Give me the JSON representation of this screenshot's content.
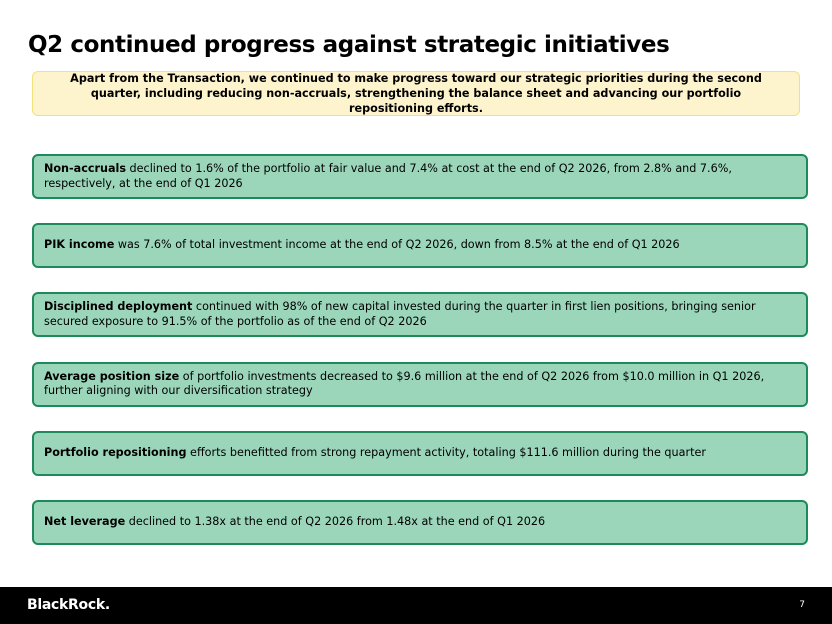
{
  "title": "Q2 continued progress against strategic initiatives",
  "intro": "Apart from the Transaction, we continued to make progress toward our strategic priorities during the second quarter, including reducing non-accruals, strengthening the balance sheet and advancing our portfolio repositioning efforts.",
  "initiatives": [
    {
      "heading": "Non-accruals",
      "text": " declined to 1.6% of the portfolio at fair value and 7.4% at cost at the end of Q2 2026, from 2.8% and 7.6%, respectively, at the end of Q1 2026"
    },
    {
      "heading": "PIK income",
      "text": " was 7.6% of total investment income at the end of Q2 2026, down from 8.5% at the end of Q1 2026"
    },
    {
      "heading": "Disciplined deployment",
      "text": " continued with 98% of new capital invested during the quarter in first lien positions, bringing senior secured exposure to 91.5% of the portfolio as of the end of Q2 2026"
    },
    {
      "heading": "Average position size",
      "text": " of portfolio investments decreased to $9.6 million at the end of Q2 2026 from $10.0 million in Q1 2026, further aligning with our diversification strategy"
    },
    {
      "heading": "Portfolio repositioning",
      "text": " efforts benefitted from strong repayment activity, totaling $111.6 million during the quarter"
    },
    {
      "heading": "Net leverage",
      "text": " declined to 1.38x at the end of Q2 2026 from 1.48x at the end of Q1 2026"
    }
  ],
  "footer": {
    "logo": "BlackRock.",
    "page_number": "7"
  },
  "colors": {
    "intro_background": "#fdf3cc",
    "intro_border": "#f2e27e",
    "card_background": "#9bd6bb",
    "card_border": "#1e8a5a",
    "footer_background": "#000000"
  }
}
